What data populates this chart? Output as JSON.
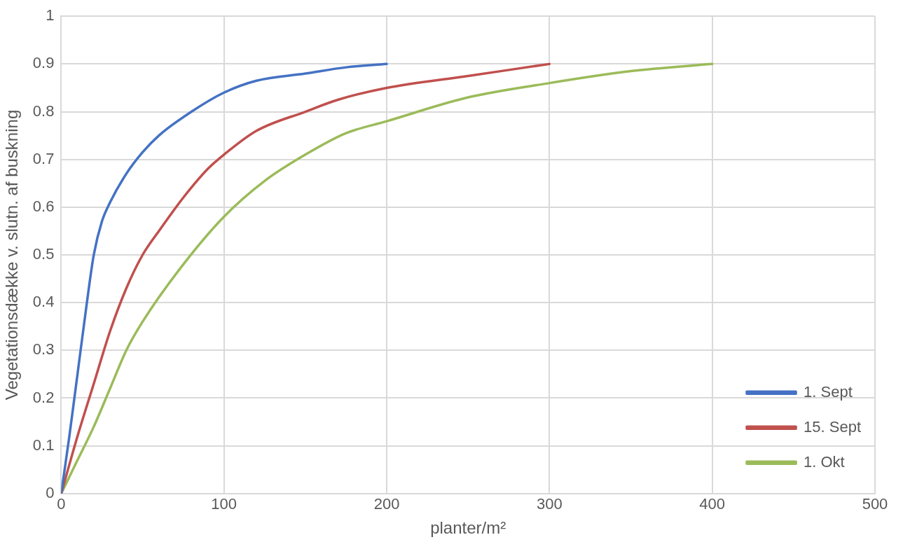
{
  "chart_data": {
    "type": "line",
    "xlabel": "planter/m²",
    "ylabel": "Vegetationsdække v. slutn. af buskning",
    "xlim": [
      0,
      500
    ],
    "xticks": [
      0,
      100,
      200,
      300,
      400,
      500
    ],
    "ylim": [
      0,
      1
    ],
    "yticks": [
      0,
      0.1,
      0.2,
      0.3,
      0.4,
      0.5,
      0.6,
      0.7,
      0.8,
      0.9,
      1
    ],
    "grid": true,
    "legend": "bottom right",
    "marker": "none",
    "line_style": "solid",
    "series": [
      {
        "name": "1. Sept",
        "color": "#4472c4",
        "x": [
          0,
          5,
          10,
          15,
          20,
          25,
          30,
          40,
          50,
          60,
          80,
          100,
          120,
          150,
          175,
          200
        ],
        "values": [
          0,
          0.12,
          0.25,
          0.38,
          0.5,
          0.57,
          0.61,
          0.67,
          0.715,
          0.75,
          0.8,
          0.84,
          0.865,
          0.88,
          0.893,
          0.9
        ]
      },
      {
        "name": "15. Sept",
        "color": "#c0504d",
        "x": [
          0,
          10,
          20,
          30,
          40,
          50,
          60,
          75,
          90,
          100,
          120,
          150,
          170,
          200,
          250,
          300
        ],
        "values": [
          0,
          0.12,
          0.23,
          0.34,
          0.43,
          0.5,
          0.55,
          0.62,
          0.68,
          0.71,
          0.76,
          0.8,
          0.825,
          0.85,
          0.875,
          0.9
        ]
      },
      {
        "name": "1. Okt",
        "color": "#9bbb59",
        "x": [
          0,
          10,
          20,
          30,
          40,
          50,
          75,
          100,
          125,
          150,
          175,
          200,
          250,
          300,
          350,
          400
        ],
        "values": [
          0,
          0.07,
          0.14,
          0.22,
          0.3,
          0.36,
          0.48,
          0.58,
          0.655,
          0.71,
          0.755,
          0.78,
          0.83,
          0.86,
          0.885,
          0.9
        ]
      }
    ]
  }
}
